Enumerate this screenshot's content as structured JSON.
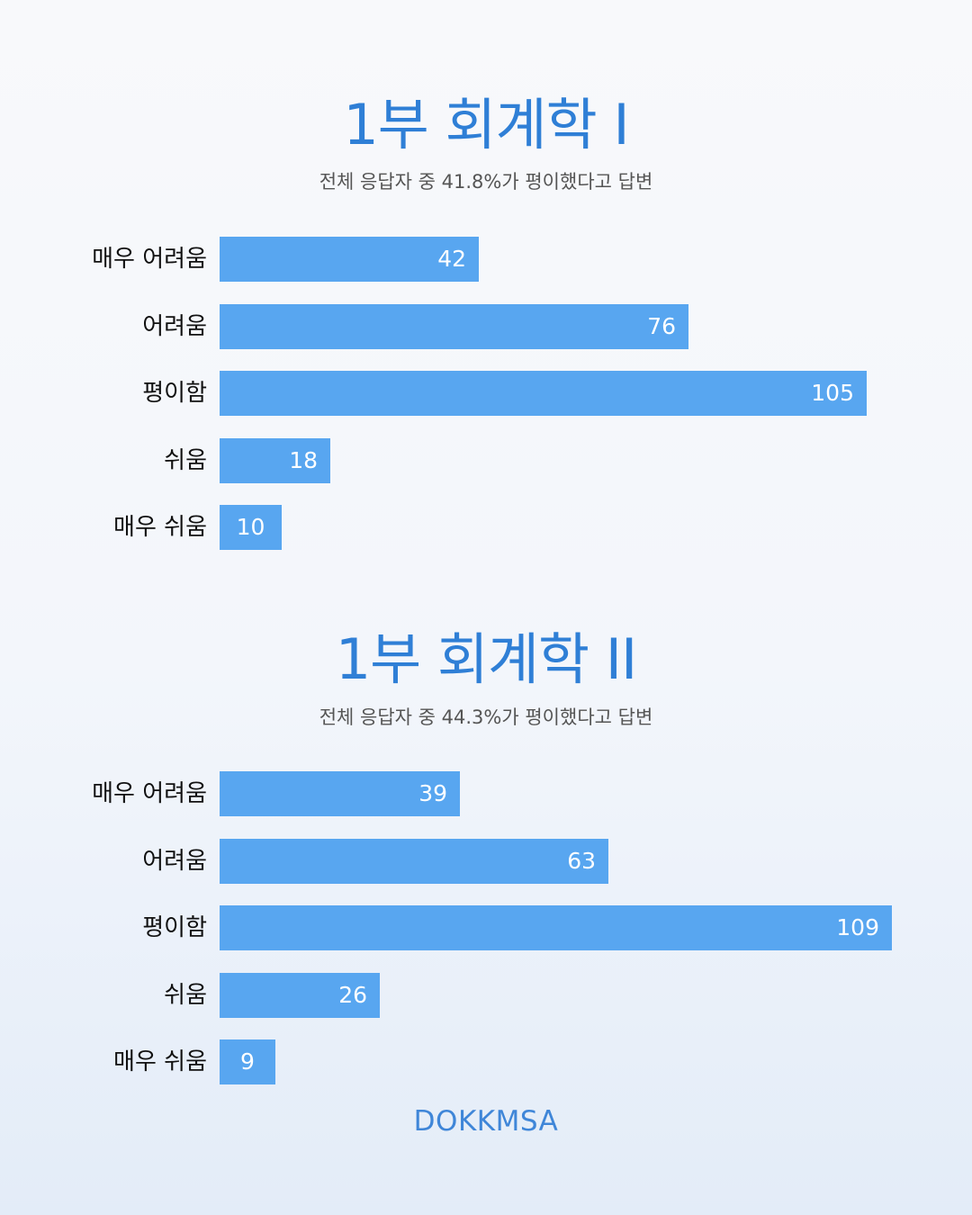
{
  "chart_data": [
    {
      "type": "bar",
      "orientation": "horizontal",
      "title": "1부 회계학 I",
      "subtitle": "전체 응답자 중 41.8%가 평이했다고 답변",
      "categories": [
        "매우 어려움",
        "어려움",
        "평이함",
        "쉬움",
        "매우 쉬움"
      ],
      "values": [
        42,
        76,
        105,
        18,
        10
      ],
      "bar_color": "#58a6f0",
      "grid": false
    },
    {
      "type": "bar",
      "orientation": "horizontal",
      "title": "1부 회계학 II",
      "subtitle": "전체 응답자 중 44.3%가 평이했다고 답변",
      "categories": [
        "매우 어려움",
        "어려움",
        "평이함",
        "쉬움",
        "매우 쉬움"
      ],
      "values": [
        39,
        63,
        109,
        26,
        9
      ],
      "bar_color": "#58a6f0",
      "grid": false
    }
  ],
  "brand": "DOKKMSA",
  "colors": {
    "title": "#2f7fd6",
    "bar": "#58a6f0",
    "brand": "#3f86d8"
  }
}
